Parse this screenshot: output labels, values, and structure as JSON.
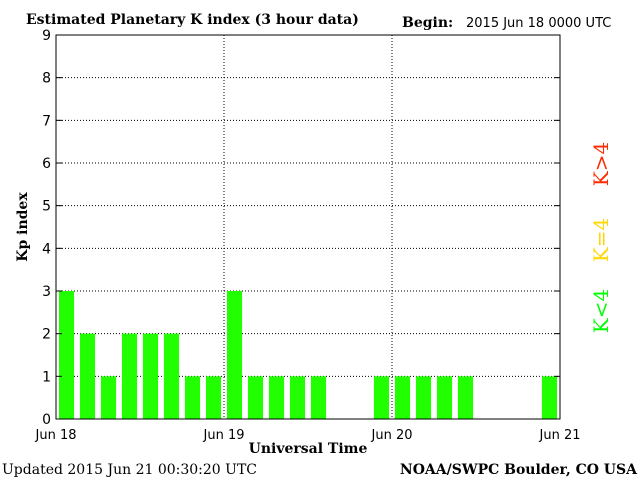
{
  "chart_data": {
    "type": "bar",
    "title": "Estimated Planetary K index (3 hour data)",
    "begin_label": "Begin:",
    "begin_value": "2015 Jun 18 0000 UTC",
    "ylabel": "Kp index",
    "xlabel": "Universal Time",
    "ylim": [
      0,
      9
    ],
    "y_ticks": [
      "0",
      "1",
      "2",
      "3",
      "4",
      "5",
      "6",
      "7",
      "8",
      "9"
    ],
    "x_tick_labels": [
      "Jun 18",
      "Jun 19",
      "Jun 20",
      "Jun 21"
    ],
    "x_range_hours": [
      0,
      72
    ],
    "interval_hours": 3,
    "values": [
      3,
      2,
      1,
      2,
      2,
      2,
      1,
      1,
      3,
      1,
      1,
      1,
      1,
      null,
      null,
      1,
      1,
      1,
      1,
      1,
      null,
      null,
      null,
      1
    ],
    "grid": true,
    "legend": [
      {
        "label": "K<4",
        "color": "#00ff00"
      },
      {
        "label": "K=4",
        "color": "#ffd700"
      },
      {
        "label": "K>4",
        "color": "#ff2a00"
      }
    ],
    "bar_color": "#22ff00"
  },
  "footer": {
    "updated": "Updated 2015 Jun 21 00:30:20 UTC",
    "source": "NOAA/SWPC Boulder, CO USA"
  }
}
